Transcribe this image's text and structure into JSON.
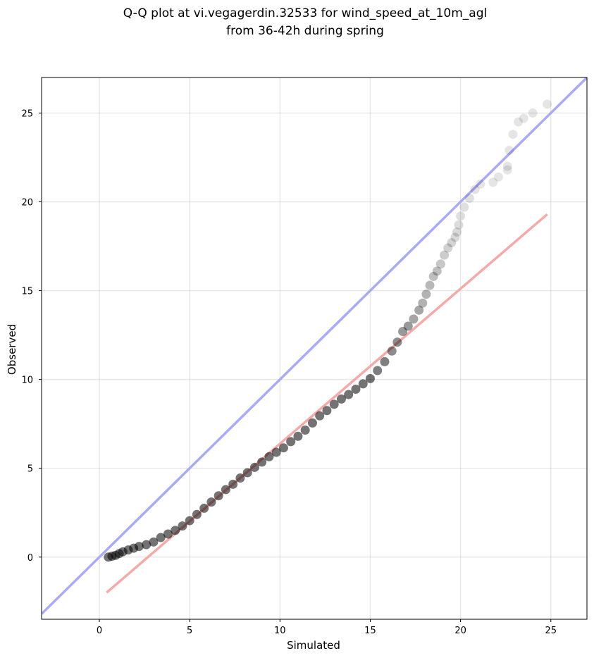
{
  "chart_data": {
    "type": "scatter",
    "title": [
      "Q-Q plot at vi.vegagerdin.32533 for wind_speed_at_10m_agl",
      "from 36-42h during spring"
    ],
    "xlabel": "Simulated",
    "ylabel": "Observed",
    "xlim": [
      -3.2,
      27.0
    ],
    "ylim": [
      -3.5,
      27.0
    ],
    "xticks": [
      0,
      5,
      10,
      15,
      20,
      25
    ],
    "yticks": [
      0,
      5,
      10,
      15,
      20,
      25
    ],
    "grid": true,
    "colors": {
      "points": "#000000",
      "identity_line": "#aaaaf5",
      "fit_line": "#f5aaaa"
    },
    "identity_line": {
      "x": [
        -3.2,
        27.0
      ],
      "y": [
        -3.2,
        27.0
      ]
    },
    "fit_line": {
      "x": [
        0.4,
        24.8
      ],
      "y": [
        -2.0,
        19.3
      ]
    },
    "series": [
      {
        "x": [
          0.5,
          0.7,
          0.9,
          1.1,
          1.3,
          1.6,
          1.9,
          2.2,
          2.6,
          3.0,
          3.4,
          3.8,
          4.2,
          4.6,
          5.0,
          5.4,
          5.8,
          6.2,
          6.6,
          7.0,
          7.4,
          7.8,
          8.2,
          8.6,
          9.0,
          9.4,
          9.8,
          10.2,
          10.6,
          11.0,
          11.4,
          11.8,
          12.2,
          12.6,
          13.0,
          13.4,
          13.8,
          14.2,
          14.6,
          15.0,
          15.4,
          15.8,
          16.2,
          16.5,
          16.8,
          17.1,
          17.4,
          17.7,
          17.9,
          18.1,
          18.3,
          18.5,
          18.7,
          18.9,
          19.1,
          19.3,
          19.5,
          19.7,
          19.8,
          19.9,
          20.0,
          20.2,
          20.5,
          20.8,
          21.1,
          21.8,
          22.1,
          22.6,
          22.6,
          22.7,
          22.9,
          23.2,
          23.5,
          24.0,
          24.8
        ],
        "y": [
          0.0,
          0.05,
          0.1,
          0.2,
          0.3,
          0.4,
          0.5,
          0.6,
          0.7,
          0.85,
          1.1,
          1.3,
          1.5,
          1.75,
          2.05,
          2.4,
          2.75,
          3.1,
          3.45,
          3.8,
          4.1,
          4.45,
          4.75,
          5.05,
          5.35,
          5.65,
          5.9,
          6.15,
          6.5,
          6.8,
          7.15,
          7.55,
          7.95,
          8.25,
          8.6,
          8.9,
          9.15,
          9.45,
          9.75,
          10.05,
          10.5,
          11.0,
          11.6,
          12.1,
          12.7,
          13.0,
          13.4,
          13.9,
          14.3,
          14.8,
          15.3,
          15.8,
          16.1,
          16.5,
          17.0,
          17.4,
          17.7,
          18.0,
          18.3,
          18.7,
          19.2,
          19.7,
          20.2,
          20.7,
          21.0,
          21.1,
          21.4,
          21.8,
          22.0,
          22.9,
          23.8,
          24.5,
          24.7,
          25.0,
          25.5
        ],
        "alpha": [
          0.55,
          0.55,
          0.55,
          0.55,
          0.55,
          0.55,
          0.55,
          0.55,
          0.55,
          0.55,
          0.55,
          0.55,
          0.55,
          0.55,
          0.55,
          0.55,
          0.55,
          0.55,
          0.55,
          0.55,
          0.55,
          0.55,
          0.55,
          0.55,
          0.55,
          0.55,
          0.55,
          0.55,
          0.55,
          0.55,
          0.55,
          0.55,
          0.55,
          0.55,
          0.55,
          0.55,
          0.55,
          0.55,
          0.55,
          0.55,
          0.5,
          0.5,
          0.45,
          0.45,
          0.4,
          0.4,
          0.35,
          0.35,
          0.3,
          0.3,
          0.28,
          0.25,
          0.25,
          0.22,
          0.2,
          0.18,
          0.17,
          0.15,
          0.15,
          0.14,
          0.13,
          0.12,
          0.12,
          0.11,
          0.1,
          0.1,
          0.1,
          0.1,
          0.1,
          0.1,
          0.1,
          0.1,
          0.1,
          0.1,
          0.1
        ]
      }
    ]
  }
}
